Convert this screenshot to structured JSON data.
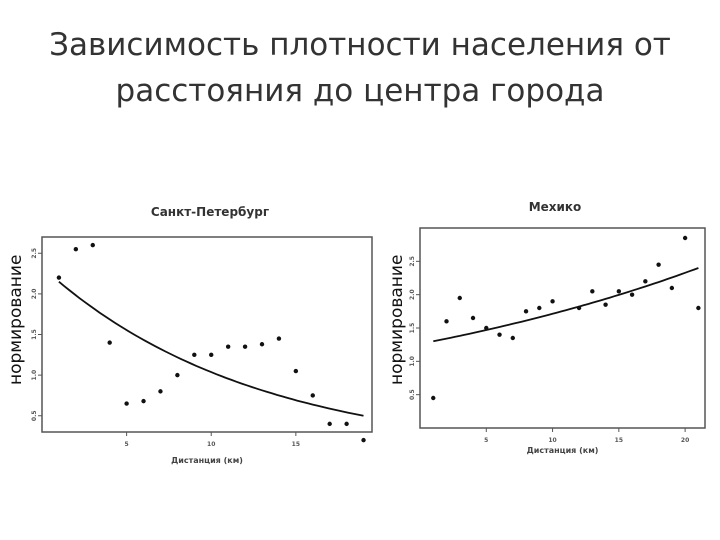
{
  "slide": {
    "title_line1": "Зависимость плотности населения от",
    "title_line2": "расстояния до центра города"
  },
  "chart_data": [
    {
      "type": "scatter",
      "title": "Санкт-Петербург",
      "xlabel": "Дистанция (км)",
      "ylabel": "нормирование",
      "xlim": [
        0,
        19.5
      ],
      "ylim": [
        0.3,
        2.7
      ],
      "x_ticks": [
        5,
        10,
        15
      ],
      "y_ticks": [
        0.5,
        1.0,
        1.5,
        2.0,
        2.5
      ],
      "x_tick_labels": [
        "5",
        "10",
        "15"
      ],
      "y_tick_labels": [
        "0.5",
        "1.0",
        "1.5",
        "2.0",
        "2.5"
      ],
      "points": [
        [
          1,
          2.2
        ],
        [
          2,
          2.55
        ],
        [
          3,
          2.6
        ],
        [
          4,
          1.4
        ],
        [
          5,
          0.65
        ],
        [
          6,
          0.68
        ],
        [
          7,
          0.8
        ],
        [
          8,
          1.0
        ],
        [
          9,
          1.25
        ],
        [
          10,
          1.25
        ],
        [
          11,
          1.35
        ],
        [
          12,
          1.35
        ],
        [
          13,
          1.38
        ],
        [
          14,
          1.45
        ],
        [
          15,
          1.05
        ],
        [
          16,
          0.75
        ],
        [
          17,
          0.4
        ],
        [
          18,
          0.4
        ],
        [
          19,
          0.2
        ]
      ],
      "trend": {
        "type": "exponential",
        "x": [
          1,
          19
        ],
        "y_start": 2.15,
        "y_end": 0.5
      },
      "grid": false
    },
    {
      "type": "scatter",
      "title": "Мехико",
      "xlabel": "Дистанция (км)",
      "ylabel": "нормирование",
      "xlim": [
        0,
        21.5
      ],
      "ylim": [
        0,
        3.0
      ],
      "x_ticks": [
        5,
        10,
        15,
        20
      ],
      "y_ticks": [
        0.5,
        1.0,
        1.5,
        2.0,
        2.5
      ],
      "x_tick_labels": [
        "5",
        "10",
        "15",
        "20"
      ],
      "y_tick_labels": [
        "0.5",
        "1.0",
        "1.5",
        "2.0",
        "2.5"
      ],
      "points": [
        [
          1,
          0.45
        ],
        [
          2,
          1.6
        ],
        [
          3,
          1.95
        ],
        [
          4,
          1.65
        ],
        [
          5,
          1.5
        ],
        [
          6,
          1.4
        ],
        [
          7,
          1.35
        ],
        [
          8,
          1.75
        ],
        [
          9,
          1.8
        ],
        [
          10,
          1.9
        ],
        [
          12,
          1.8
        ],
        [
          13,
          2.05
        ],
        [
          14,
          1.85
        ],
        [
          15,
          2.05
        ],
        [
          16,
          2.0
        ],
        [
          17,
          2.2
        ],
        [
          18,
          2.45
        ],
        [
          19,
          2.1
        ],
        [
          20,
          2.85
        ],
        [
          21,
          1.8
        ]
      ],
      "trend": {
        "type": "exponential",
        "x": [
          1,
          21
        ],
        "y_start": 1.3,
        "y_end": 2.4
      },
      "grid": false
    }
  ]
}
